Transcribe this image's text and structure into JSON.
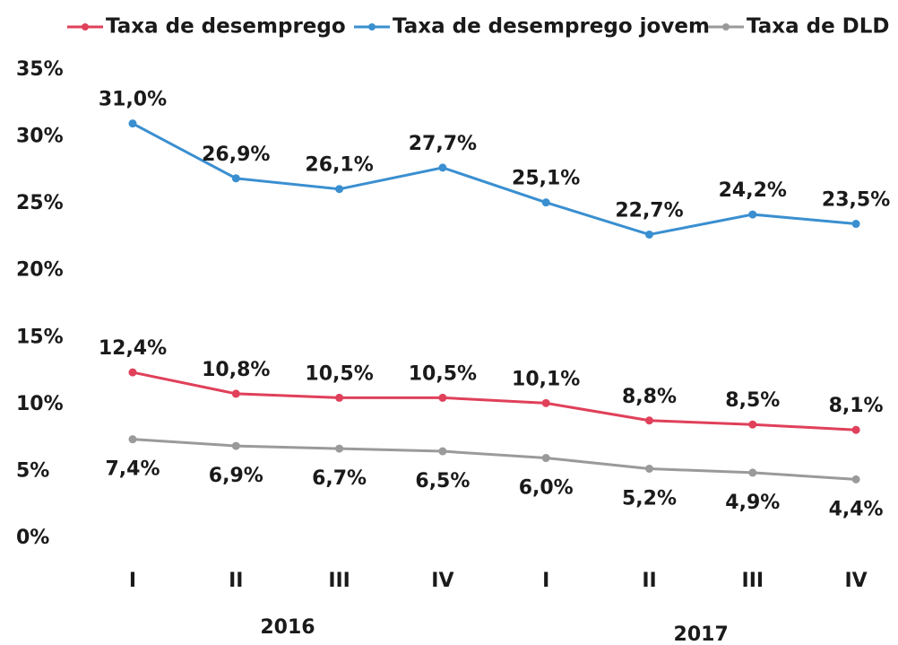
{
  "chart_data": {
    "type": "line",
    "categories": [
      "I",
      "II",
      "III",
      "IV",
      "I",
      "II",
      "III",
      "IV"
    ],
    "group_labels": [
      "2016",
      "2017"
    ],
    "ylim": [
      0,
      35
    ],
    "yticks": [
      {
        "value": 0,
        "label": "0%"
      },
      {
        "value": 5,
        "label": "5%"
      },
      {
        "value": 10,
        "label": "10%"
      },
      {
        "value": 15,
        "label": "15%"
      },
      {
        "value": 20,
        "label": "20%"
      },
      {
        "value": 25,
        "label": "25%"
      },
      {
        "value": 30,
        "label": "30%"
      },
      {
        "value": 35,
        "label": "35%"
      }
    ],
    "grid": false,
    "legend": "top",
    "series": [
      {
        "name": "Taxa de desemprego",
        "color": "#e0405a",
        "values": [
          12.4,
          10.8,
          10.5,
          10.5,
          10.1,
          8.8,
          8.5,
          8.1
        ],
        "value_labels": [
          "12,4%",
          "10,8%",
          "10,5%",
          "10,5%",
          "10,1%",
          "8,8%",
          "8,5%",
          "8,1%"
        ]
      },
      {
        "name": "Taxa de desemprego jovem",
        "color": "#3a8fd0",
        "values": [
          31.0,
          26.9,
          26.1,
          27.7,
          25.1,
          22.7,
          24.2,
          23.5
        ],
        "value_labels": [
          "31,0%",
          "26,9%",
          "26,1%",
          "27,7%",
          "25,1%",
          "22,7%",
          "24,2%",
          "23,5%"
        ]
      },
      {
        "name": "Taxa de DLD",
        "color": "#9a9a9a",
        "values": [
          7.4,
          6.9,
          6.7,
          6.5,
          6.0,
          5.2,
          4.9,
          4.4
        ],
        "value_labels": [
          "7,4%",
          "6,9%",
          "6,7%",
          "6,5%",
          "6,0%",
          "5,2%",
          "4,9%",
          "4,4%"
        ]
      }
    ]
  }
}
